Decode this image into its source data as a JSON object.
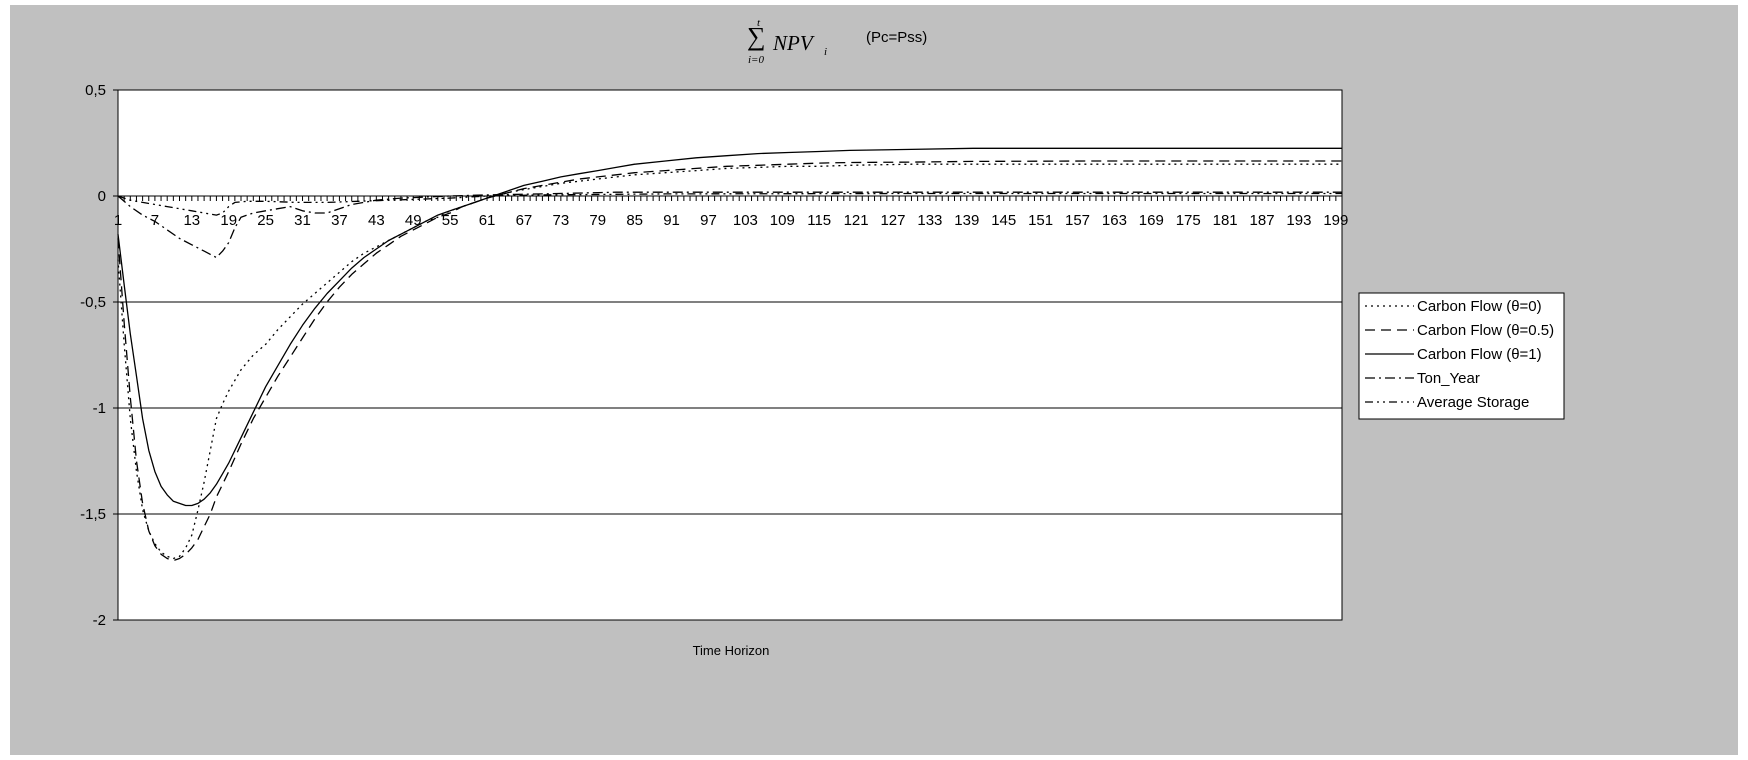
{
  "chart_data": {
    "type": "line",
    "title_formula": {
      "sigma": "∑",
      "upper": "t",
      "lower": "i=0",
      "expr": "NPV",
      "sub": "i"
    },
    "subtitle": "(Pc=Pss)",
    "xlabel": "Time Horizon",
    "ylabel": "",
    "ylim": [
      -2,
      0.5
    ],
    "xlim": [
      1,
      200
    ],
    "y_ticks": [
      0.5,
      0,
      -0.5,
      -1,
      -1.5,
      -2
    ],
    "y_tick_labels": [
      "0,5",
      "0",
      "-0,5",
      "-1",
      "-1,5",
      "-2"
    ],
    "x_tick_labels": [
      "1",
      "7",
      "13",
      "19",
      "25",
      "31",
      "37",
      "43",
      "49",
      "55",
      "61",
      "67",
      "73",
      "79",
      "85",
      "91",
      "97",
      "103",
      "109",
      "115",
      "121",
      "127",
      "133",
      "139",
      "145",
      "151",
      "157",
      "163",
      "169",
      "175",
      "181",
      "187",
      "193",
      "199"
    ],
    "grid": "horizontal",
    "legend_position": "right",
    "series": [
      {
        "name": "Carbon Flow (θ=0)",
        "dash": "2,4",
        "points": [
          [
            1,
            -0.3
          ],
          [
            2,
            -0.7
          ],
          [
            3,
            -1.05
          ],
          [
            4,
            -1.3
          ],
          [
            5,
            -1.48
          ],
          [
            6,
            -1.58
          ],
          [
            7,
            -1.64
          ],
          [
            8,
            -1.68
          ],
          [
            9,
            -1.7
          ],
          [
            10,
            -1.71
          ],
          [
            11,
            -1.7
          ],
          [
            12,
            -1.66
          ],
          [
            13,
            -1.6
          ],
          [
            14,
            -1.48
          ],
          [
            15,
            -1.35
          ],
          [
            16,
            -1.2
          ],
          [
            17,
            -1.05
          ],
          [
            18,
            -0.98
          ],
          [
            19,
            -0.92
          ],
          [
            21,
            -0.82
          ],
          [
            23,
            -0.75
          ],
          [
            25,
            -0.7
          ],
          [
            27,
            -0.63
          ],
          [
            29,
            -0.57
          ],
          [
            31,
            -0.51
          ],
          [
            33,
            -0.46
          ],
          [
            35,
            -0.41
          ],
          [
            37,
            -0.36
          ],
          [
            39,
            -0.31
          ],
          [
            41,
            -0.27
          ],
          [
            43,
            -0.24
          ],
          [
            45,
            -0.21
          ],
          [
            47,
            -0.18
          ],
          [
            49,
            -0.15
          ],
          [
            51,
            -0.12
          ],
          [
            53,
            -0.1
          ],
          [
            55,
            -0.07
          ],
          [
            57,
            -0.05
          ],
          [
            59,
            -0.03
          ],
          [
            61,
            -0.01
          ],
          [
            63,
            0.005
          ],
          [
            65,
            0.02
          ],
          [
            67,
            0.03
          ],
          [
            70,
            0.045
          ],
          [
            73,
            0.06
          ],
          [
            76,
            0.07
          ],
          [
            79,
            0.08
          ],
          [
            82,
            0.09
          ],
          [
            85,
            0.1
          ],
          [
            90,
            0.11
          ],
          [
            95,
            0.12
          ],
          [
            100,
            0.13
          ],
          [
            105,
            0.135
          ],
          [
            110,
            0.14
          ],
          [
            115,
            0.14
          ],
          [
            120,
            0.145
          ],
          [
            130,
            0.15
          ],
          [
            140,
            0.15
          ],
          [
            160,
            0.15
          ],
          [
            180,
            0.15
          ],
          [
            200,
            0.15
          ]
        ]
      },
      {
        "name": "Carbon Flow (θ=0.5)",
        "dash": "10,6",
        "points": [
          [
            1,
            -0.2
          ],
          [
            2,
            -0.6
          ],
          [
            3,
            -0.95
          ],
          [
            4,
            -1.25
          ],
          [
            5,
            -1.45
          ],
          [
            6,
            -1.58
          ],
          [
            7,
            -1.65
          ],
          [
            8,
            -1.69
          ],
          [
            9,
            -1.71
          ],
          [
            10,
            -1.72
          ],
          [
            11,
            -1.71
          ],
          [
            12,
            -1.69
          ],
          [
            13,
            -1.66
          ],
          [
            14,
            -1.62
          ],
          [
            15,
            -1.56
          ],
          [
            16,
            -1.5
          ],
          [
            17,
            -1.42
          ],
          [
            18,
            -1.36
          ],
          [
            19,
            -1.3
          ],
          [
            21,
            -1.17
          ],
          [
            23,
            -1.05
          ],
          [
            25,
            -0.95
          ],
          [
            27,
            -0.85
          ],
          [
            29,
            -0.76
          ],
          [
            31,
            -0.67
          ],
          [
            33,
            -0.58
          ],
          [
            35,
            -0.5
          ],
          [
            37,
            -0.43
          ],
          [
            39,
            -0.37
          ],
          [
            41,
            -0.32
          ],
          [
            43,
            -0.27
          ],
          [
            45,
            -0.23
          ],
          [
            47,
            -0.19
          ],
          [
            49,
            -0.16
          ],
          [
            51,
            -0.13
          ],
          [
            53,
            -0.1
          ],
          [
            55,
            -0.08
          ],
          [
            57,
            -0.05
          ],
          [
            59,
            -0.03
          ],
          [
            61,
            -0.01
          ],
          [
            63,
            0.005
          ],
          [
            65,
            0.02
          ],
          [
            67,
            0.035
          ],
          [
            70,
            0.05
          ],
          [
            73,
            0.065
          ],
          [
            76,
            0.08
          ],
          [
            79,
            0.09
          ],
          [
            82,
            0.1
          ],
          [
            85,
            0.11
          ],
          [
            90,
            0.12
          ],
          [
            95,
            0.13
          ],
          [
            100,
            0.14
          ],
          [
            105,
            0.145
          ],
          [
            110,
            0.15
          ],
          [
            115,
            0.155
          ],
          [
            120,
            0.158
          ],
          [
            130,
            0.16
          ],
          [
            140,
            0.163
          ],
          [
            160,
            0.165
          ],
          [
            180,
            0.165
          ],
          [
            200,
            0.165
          ]
        ]
      },
      {
        "name": "Carbon Flow (θ=1)",
        "dash": "",
        "points": [
          [
            1,
            -0.18
          ],
          [
            2,
            -0.42
          ],
          [
            3,
            -0.65
          ],
          [
            4,
            -0.85
          ],
          [
            5,
            -1.05
          ],
          [
            6,
            -1.2
          ],
          [
            7,
            -1.3
          ],
          [
            8,
            -1.37
          ],
          [
            9,
            -1.41
          ],
          [
            10,
            -1.44
          ],
          [
            11,
            -1.45
          ],
          [
            12,
            -1.46
          ],
          [
            13,
            -1.46
          ],
          [
            14,
            -1.45
          ],
          [
            15,
            -1.43
          ],
          [
            16,
            -1.4
          ],
          [
            17,
            -1.36
          ],
          [
            18,
            -1.31
          ],
          [
            19,
            -1.26
          ],
          [
            21,
            -1.14
          ],
          [
            23,
            -1.02
          ],
          [
            25,
            -0.9
          ],
          [
            27,
            -0.8
          ],
          [
            29,
            -0.7
          ],
          [
            31,
            -0.61
          ],
          [
            33,
            -0.53
          ],
          [
            35,
            -0.46
          ],
          [
            37,
            -0.4
          ],
          [
            39,
            -0.34
          ],
          [
            41,
            -0.29
          ],
          [
            43,
            -0.25
          ],
          [
            45,
            -0.21
          ],
          [
            47,
            -0.18
          ],
          [
            49,
            -0.15
          ],
          [
            51,
            -0.12
          ],
          [
            53,
            -0.09
          ],
          [
            55,
            -0.07
          ],
          [
            57,
            -0.05
          ],
          [
            59,
            -0.03
          ],
          [
            61,
            -0.01
          ],
          [
            63,
            0.01
          ],
          [
            65,
            0.03
          ],
          [
            67,
            0.05
          ],
          [
            70,
            0.07
          ],
          [
            73,
            0.09
          ],
          [
            76,
            0.105
          ],
          [
            79,
            0.12
          ],
          [
            82,
            0.135
          ],
          [
            85,
            0.15
          ],
          [
            90,
            0.165
          ],
          [
            95,
            0.18
          ],
          [
            100,
            0.19
          ],
          [
            105,
            0.2
          ],
          [
            110,
            0.205
          ],
          [
            115,
            0.21
          ],
          [
            120,
            0.215
          ],
          [
            130,
            0.22
          ],
          [
            140,
            0.225
          ],
          [
            160,
            0.225
          ],
          [
            180,
            0.225
          ],
          [
            200,
            0.225
          ]
        ]
      },
      {
        "name": "Ton_Year",
        "dash": "10,4,2,4",
        "points": [
          [
            1,
            0
          ],
          [
            3,
            -0.05
          ],
          [
            5,
            -0.09
          ],
          [
            7,
            -0.12
          ],
          [
            9,
            -0.16
          ],
          [
            11,
            -0.2
          ],
          [
            13,
            -0.23
          ],
          [
            15,
            -0.26
          ],
          [
            17,
            -0.29
          ],
          [
            18,
            -0.26
          ],
          [
            19,
            -0.22
          ],
          [
            20,
            -0.15
          ],
          [
            21,
            -0.1
          ],
          [
            23,
            -0.08
          ],
          [
            25,
            -0.07
          ],
          [
            27,
            -0.06
          ],
          [
            29,
            -0.05
          ],
          [
            31,
            -0.07
          ],
          [
            33,
            -0.08
          ],
          [
            35,
            -0.08
          ],
          [
            37,
            -0.06
          ],
          [
            39,
            -0.04
          ],
          [
            41,
            -0.03
          ],
          [
            43,
            -0.02
          ],
          [
            47,
            -0.01
          ],
          [
            55,
            0
          ],
          [
            61,
            0.005
          ],
          [
            70,
            0.01
          ],
          [
            82,
            0.018
          ],
          [
            100,
            0.018
          ],
          [
            140,
            0.018
          ],
          [
            200,
            0.018
          ]
        ]
      },
      {
        "name": "Average Storage",
        "dash": "8,4,2,4,2,4",
        "points": [
          [
            1,
            0
          ],
          [
            3,
            -0.02
          ],
          [
            5,
            -0.03
          ],
          [
            7,
            -0.04
          ],
          [
            9,
            -0.05
          ],
          [
            11,
            -0.06
          ],
          [
            13,
            -0.07
          ],
          [
            15,
            -0.08
          ],
          [
            17,
            -0.09
          ],
          [
            18,
            -0.08
          ],
          [
            19,
            -0.05
          ],
          [
            20,
            -0.03
          ],
          [
            22,
            -0.025
          ],
          [
            25,
            -0.025
          ],
          [
            30,
            -0.03
          ],
          [
            35,
            -0.03
          ],
          [
            40,
            -0.025
          ],
          [
            45,
            -0.02
          ],
          [
            50,
            -0.015
          ],
          [
            55,
            -0.01
          ],
          [
            61,
            0
          ],
          [
            70,
            0.005
          ],
          [
            90,
            0.01
          ],
          [
            130,
            0.012
          ],
          [
            200,
            0.012
          ]
        ]
      }
    ]
  }
}
